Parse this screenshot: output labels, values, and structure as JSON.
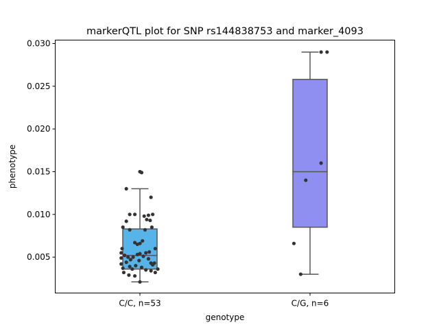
{
  "chart_data": {
    "type": "box",
    "title": "markerQTL plot for SNP rs144838753 and marker_4093",
    "xlabel": "genotype",
    "ylabel": "phenotype",
    "ylim": [
      0.0008,
      0.0304
    ],
    "yticks": [
      "0.005",
      "0.010",
      "0.015",
      "0.020",
      "0.025",
      "0.030"
    ],
    "ytick_values": [
      0.005,
      0.01,
      0.015,
      0.02,
      0.025,
      0.03
    ],
    "categories": [
      "C/C, n=53",
      "C/G, n=6"
    ],
    "grid": false,
    "colors": {
      "box_cc": "#56b4e9",
      "box_cg": "#8f8ff2",
      "line": "#555555",
      "point": "#333333"
    },
    "boxes": [
      {
        "category": "C/C, n=53",
        "q1": 0.0036,
        "median": 0.0052,
        "q3": 0.0083,
        "whisker_low": 0.0021,
        "whisker_high": 0.013
      },
      {
        "category": "C/G, n=6",
        "q1": 0.0085,
        "median": 0.015,
        "q3": 0.0258,
        "whisker_low": 0.003,
        "whisker_high": 0.029
      }
    ],
    "points": [
      {
        "group": 0,
        "jitter": 0.0,
        "y": 0.015
      },
      {
        "group": 0,
        "jitter": 0.02,
        "y": 0.0149
      },
      {
        "group": 0,
        "jitter": -0.16,
        "y": 0.013
      },
      {
        "group": 0,
        "jitter": 0.13,
        "y": 0.012
      },
      {
        "group": 0,
        "jitter": -0.12,
        "y": 0.01
      },
      {
        "group": 0,
        "jitter": -0.06,
        "y": 0.01
      },
      {
        "group": 0,
        "jitter": 0.15,
        "y": 0.01
      },
      {
        "group": 0,
        "jitter": 0.1,
        "y": 0.0099
      },
      {
        "group": 0,
        "jitter": 0.05,
        "y": 0.0098
      },
      {
        "group": 0,
        "jitter": -0.16,
        "y": 0.0092
      },
      {
        "group": 0,
        "jitter": 0.08,
        "y": 0.0094
      },
      {
        "group": 0,
        "jitter": 0.12,
        "y": 0.0093
      },
      {
        "group": 0,
        "jitter": -0.2,
        "y": 0.0085
      },
      {
        "group": 0,
        "jitter": 0.14,
        "y": 0.0085
      },
      {
        "group": 0,
        "jitter": -0.12,
        "y": 0.0082
      },
      {
        "group": 0,
        "jitter": 0.06,
        "y": 0.0082
      },
      {
        "group": 0,
        "jitter": -0.06,
        "y": 0.0067
      },
      {
        "group": 0,
        "jitter": 0.0,
        "y": 0.0066
      },
      {
        "group": 0,
        "jitter": 0.03,
        "y": 0.0069
      },
      {
        "group": 0,
        "jitter": -0.03,
        "y": 0.0065
      },
      {
        "group": 0,
        "jitter": -0.21,
        "y": 0.006
      },
      {
        "group": 0,
        "jitter": 0.18,
        "y": 0.006
      },
      {
        "group": 0,
        "jitter": 0.11,
        "y": 0.0056
      },
      {
        "group": 0,
        "jitter": -0.22,
        "y": 0.0055
      },
      {
        "group": 0,
        "jitter": 0.0,
        "y": 0.0054
      },
      {
        "group": 0,
        "jitter": 0.07,
        "y": 0.0055
      },
      {
        "group": 0,
        "jitter": -0.18,
        "y": 0.0052
      },
      {
        "group": 0,
        "jitter": -0.14,
        "y": 0.005
      },
      {
        "group": 0,
        "jitter": -0.08,
        "y": 0.005
      },
      {
        "group": 0,
        "jitter": -0.03,
        "y": 0.0053
      },
      {
        "group": 0,
        "jitter": 0.04,
        "y": 0.0051
      },
      {
        "group": 0,
        "jitter": -0.22,
        "y": 0.0049
      },
      {
        "group": 0,
        "jitter": -0.11,
        "y": 0.0047
      },
      {
        "group": 0,
        "jitter": -0.01,
        "y": 0.0046
      },
      {
        "group": 0,
        "jitter": 0.1,
        "y": 0.0048
      },
      {
        "group": 0,
        "jitter": -0.16,
        "y": 0.0044
      },
      {
        "group": 0,
        "jitter": -0.22,
        "y": 0.0042
      },
      {
        "group": 0,
        "jitter": 0.13,
        "y": 0.0043
      },
      {
        "group": 0,
        "jitter": 0.17,
        "y": 0.0043
      },
      {
        "group": 0,
        "jitter": 0.15,
        "y": 0.0041
      },
      {
        "group": 0,
        "jitter": -0.12,
        "y": 0.0039
      },
      {
        "group": 0,
        "jitter": -0.05,
        "y": 0.004
      },
      {
        "group": 0,
        "jitter": 0.02,
        "y": 0.0038
      },
      {
        "group": 0,
        "jitter": -0.2,
        "y": 0.0037
      },
      {
        "group": 0,
        "jitter": -0.09,
        "y": 0.0036
      },
      {
        "group": 0,
        "jitter": 0.07,
        "y": 0.0035
      },
      {
        "group": 0,
        "jitter": 0.21,
        "y": 0.0036
      },
      {
        "group": 0,
        "jitter": 0.13,
        "y": 0.0034
      },
      {
        "group": 0,
        "jitter": -0.19,
        "y": 0.0032
      },
      {
        "group": 0,
        "jitter": 0.18,
        "y": 0.0032
      },
      {
        "group": 0,
        "jitter": -0.13,
        "y": 0.0029
      },
      {
        "group": 0,
        "jitter": -0.06,
        "y": 0.0028
      },
      {
        "group": 0,
        "jitter": 0.0,
        "y": 0.0021
      },
      {
        "group": 1,
        "jitter": 0.13,
        "y": 0.029
      },
      {
        "group": 1,
        "jitter": 0.2,
        "y": 0.029
      },
      {
        "group": 1,
        "jitter": 0.13,
        "y": 0.016
      },
      {
        "group": 1,
        "jitter": -0.05,
        "y": 0.014
      },
      {
        "group": 1,
        "jitter": -0.19,
        "y": 0.0066
      },
      {
        "group": 1,
        "jitter": -0.11,
        "y": 0.003
      }
    ]
  }
}
